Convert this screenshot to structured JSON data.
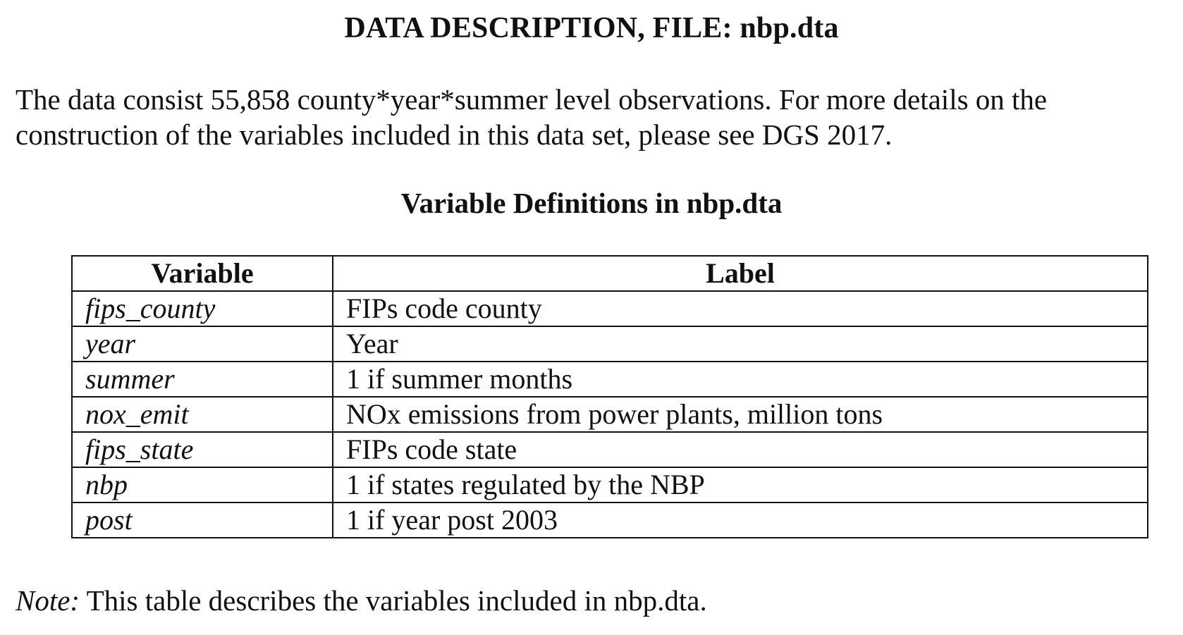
{
  "document": {
    "title": "DATA DESCRIPTION, FILE: nbp.dta",
    "intro": "The data consist 55,858 county*year*summer level observations.  For more details on the construction of the variables included in this data set, please see DGS 2017.",
    "table_title": "Variable Definitions in nbp.dta",
    "table": {
      "headers": {
        "variable": "Variable",
        "label": "Label"
      },
      "rows": [
        {
          "variable": "fips_county",
          "label": "FIPs code county"
        },
        {
          "variable": "year",
          "label": "Year"
        },
        {
          "variable": "summer",
          "label": "1 if summer months"
        },
        {
          "variable": "nox_emit",
          "label": "NOx emissions from power plants, million tons"
        },
        {
          "variable": "fips_state",
          "label": "FIPs code state"
        },
        {
          "variable": "nbp",
          "label": "1 if states regulated by the NBP"
        },
        {
          "variable": "post",
          "label": "1 if year post 2003"
        }
      ]
    },
    "note": {
      "label": "Note:",
      "text": " This table describes the variables included in nbp.dta."
    }
  }
}
